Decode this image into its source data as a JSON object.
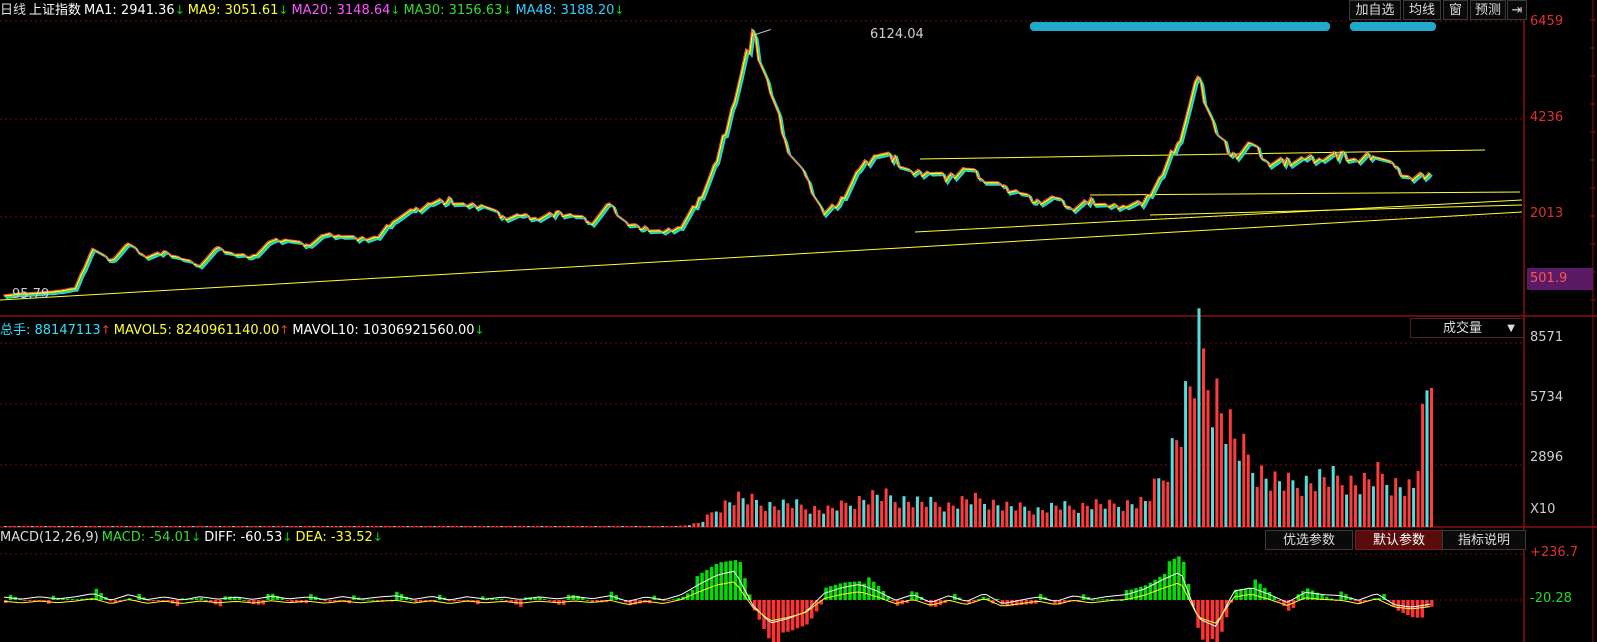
{
  "price": {
    "legend": [
      {
        "text": "日线",
        "color": "#dddddd",
        "arrow": ""
      },
      {
        "text": "上证指数",
        "color": "#ffffff",
        "arrow": ""
      },
      {
        "text": "MA1: 2941.36",
        "color": "#ffffff",
        "arrow": "↓",
        "arrow_color": "#00dd00"
      },
      {
        "text": "MA9: 3051.61",
        "color": "#ffff33",
        "arrow": "↓",
        "arrow_color": "#00dd00"
      },
      {
        "text": "MA20: 3148.64",
        "color": "#ff55ff",
        "arrow": "↓",
        "arrow_color": "#00dd00"
      },
      {
        "text": "MA30: 3156.63",
        "color": "#33dd33",
        "arrow": "↓",
        "arrow_color": "#00dd00"
      },
      {
        "text": "MA48: 3188.20",
        "color": "#33ccff",
        "arrow": "↓",
        "arrow_color": "#00dd00"
      }
    ],
    "buttons": [
      {
        "id": "add-watch",
        "label": "加自选"
      },
      {
        "id": "ma-line",
        "label": "均线"
      },
      {
        "id": "window",
        "label": "窗"
      },
      {
        "id": "predict",
        "label": "预测"
      }
    ],
    "axis": {
      "ticks": [
        "6459",
        "4236",
        "2013"
      ],
      "current": "501.9"
    },
    "peak_label": "6124.04",
    "low_label": "95.79"
  },
  "volume": {
    "legend": [
      {
        "text": "总手: 88147113",
        "color": "#33ddff",
        "arrow": "↑",
        "arrow_color": "#ff3333"
      },
      {
        "text": "MAVOL5: 8240961140.00",
        "color": "#ffff33",
        "arrow": "↑",
        "arrow_color": "#ff3333"
      },
      {
        "text": "MAVOL10: 10306921560.00",
        "color": "#ffffff",
        "arrow": "↓",
        "arrow_color": "#00dd00"
      }
    ],
    "selector": "成交量",
    "axis": {
      "ticks": [
        "8571",
        "5734",
        "2896"
      ],
      "unit": "X10"
    }
  },
  "macd": {
    "legend": [
      {
        "text": "MACD(12,26,9)",
        "color": "#dddddd",
        "arrow": ""
      },
      {
        "text": "MACD: -54.01",
        "color": "#33dd33",
        "arrow": "↓",
        "arrow_color": "#00dd00"
      },
      {
        "text": "DIFF: -60.53",
        "color": "#ffffff",
        "arrow": "↓",
        "arrow_color": "#00dd00"
      },
      {
        "text": "DEA: -33.52",
        "color": "#ffff33",
        "arrow": "↓",
        "arrow_color": "#00dd00"
      }
    ],
    "buttons": [
      {
        "id": "preferred-params",
        "label": "优选参数",
        "active": false
      },
      {
        "id": "default-params",
        "label": "默认参数",
        "active": true
      },
      {
        "id": "indicator-help",
        "label": "指标说明",
        "active": false
      }
    ],
    "axis": {
      "ticks": [
        "+236.7",
        "-20.28"
      ]
    }
  },
  "colors": {
    "up": "#ff3b3b",
    "down": "#55dddd",
    "grid": "#6a1010",
    "ma_yellow": "#ffff33",
    "macd_up": "#ff3333",
    "macd_down": "#00dd00"
  },
  "chart_data": [
    {
      "type": "line",
      "series": [
        {
          "values": [
            96,
            140,
            160,
            200,
            260,
            1200,
            900,
            1300,
            1000,
            1100,
            950,
            800,
            1200,
            1050,
            1000,
            1350,
            1400,
            1250,
            1500,
            1500,
            1400,
            1450,
            1900,
            2050,
            2250,
            2300,
            2150,
            2200,
            1900,
            1950,
            1900,
            2000,
            1950,
            1800,
            2200,
            1750,
            1650,
            1550,
            1700,
            2300,
            3200,
            4700,
            6124,
            4800,
            3500,
            2800,
            2000,
            2300,
            3000,
            3400,
            3250,
            2900,
            3000,
            2800,
            3050,
            2800,
            2600,
            2500,
            2250,
            2350,
            2100,
            2300,
            2150,
            2200,
            2250,
            2900,
            3800,
            5100,
            3900,
            3300,
            3600,
            3150,
            3200,
            3250,
            3300,
            3350,
            3200,
            3400,
            3050,
            2800,
            2940
          ]
        }
      ]
    },
    {
      "type": "bar",
      "series": [
        {
          "values": [
            5,
            5,
            6,
            6,
            8,
            10,
            9,
            12,
            10,
            9,
            8,
            8,
            10,
            9,
            8,
            12,
            14,
            12,
            16,
            15,
            14,
            15,
            18,
            20,
            22,
            24,
            20,
            22,
            18,
            19,
            18,
            20,
            19,
            18,
            40,
            35,
            30,
            28,
            60,
            200,
            900,
            1400,
            1200,
            1000,
            1100,
            900,
            800,
            1000,
            1300,
            1500,
            1300,
            1200,
            1100,
            1000,
            1300,
            1200,
            1000,
            900,
            800,
            1000,
            900,
            1100,
            1000,
            1100,
            1200,
            2500,
            5000,
            8200,
            6000,
            4000,
            2800,
            2200,
            2000,
            2100,
            2300,
            2200,
            2000,
            2400,
            2000,
            1800,
            7300
          ]
        }
      ]
    },
    {
      "type": "bar",
      "series": [
        {
          "values": [
            8,
            -10,
            12,
            -8,
            10,
            40,
            -20,
            30,
            -15,
            10,
            -18,
            12,
            -10,
            8,
            -12,
            15,
            -8,
            10,
            -14,
            12,
            -10,
            8,
            20,
            -12,
            15,
            -18,
            12,
            -10,
            8,
            -14,
            10,
            -8,
            12,
            -6,
            20,
            -30,
            10,
            -18,
            30,
            120,
            200,
            236,
            -60,
            -220,
            -180,
            -120,
            40,
            90,
            120,
            60,
            -20,
            30,
            -40,
            20,
            -30,
            40,
            -50,
            -20,
            10,
            -30,
            20,
            -10,
            15,
            30,
            80,
            160,
            230,
            -180,
            -250,
            60,
            90,
            30,
            -40,
            50,
            30,
            20,
            -20,
            40,
            -60,
            -80,
            -54
          ]
        }
      ]
    }
  ]
}
